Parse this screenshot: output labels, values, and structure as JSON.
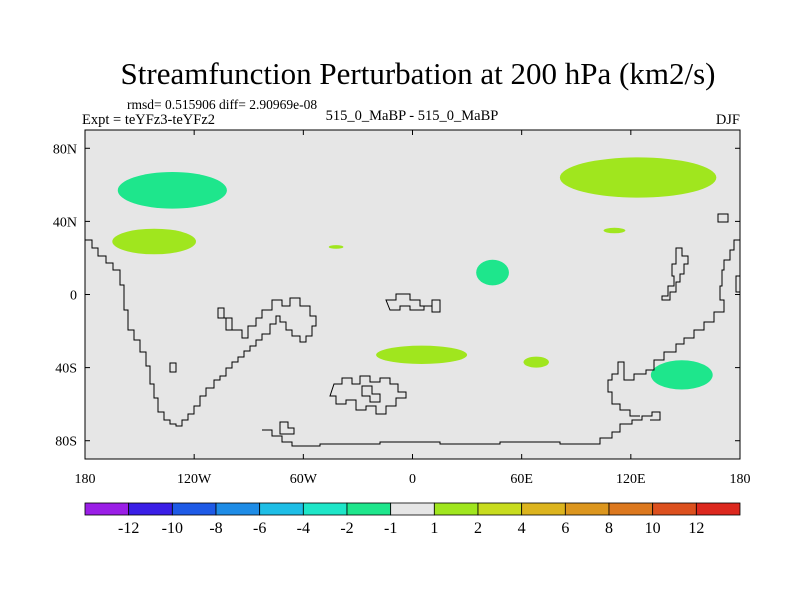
{
  "chart_data": {
    "type": "contour_map",
    "title": "Streamfunction Perturbation at 200 hPa (km2/s)",
    "stats": "rmsd= 0.515906 diff= 2.90969e-08",
    "left_label": "Expt = teYFz3-teYFz2",
    "center_label": "515_0_MaBP - 515_0_MaBP",
    "right_label": "DJF",
    "x_ticks": [
      {
        "lon": -180,
        "label": "180"
      },
      {
        "lon": -120,
        "label": "120W"
      },
      {
        "lon": -60,
        "label": "60W"
      },
      {
        "lon": 0,
        "label": "0"
      },
      {
        "lon": 60,
        "label": "60E"
      },
      {
        "lon": 120,
        "label": "120E"
      },
      {
        "lon": 180,
        "label": "180"
      }
    ],
    "y_ticks": [
      {
        "lat": 80,
        "label": "80N"
      },
      {
        "lat": 40,
        "label": "40N"
      },
      {
        "lat": 0,
        "label": "0"
      },
      {
        "lat": -40,
        "label": "40S"
      },
      {
        "lat": -80,
        "label": "80S"
      }
    ],
    "xlim": [
      -180,
      180
    ],
    "ylim": [
      -90,
      90
    ],
    "colorbar": {
      "colors": [
        "#9a1ee6",
        "#3a1ee6",
        "#1e5ae6",
        "#1e8ce6",
        "#1ebee6",
        "#1ee6c8",
        "#1ee68c",
        "#e6e6e6",
        "#a0e61e",
        "#c8dc1e",
        "#dcb41e",
        "#dc961e",
        "#dc781e",
        "#dc501e",
        "#dc281e"
      ],
      "labels": [
        "-12",
        "-10",
        "-8",
        "-6",
        "-4",
        "-2",
        "-1",
        "1",
        "2",
        "4",
        "6",
        "8",
        "10",
        "12"
      ]
    },
    "regions": [
      {
        "name": "cyan-blob-north-pacific",
        "value_bin": "-2 to -1",
        "color": "#1ee68c",
        "center_lon": -132,
        "center_lat": 57,
        "lon_radius": 30,
        "lat_radius": 10
      },
      {
        "name": "green-blob-pacific-30n",
        "value_bin": "1 to 2",
        "color": "#a0e61e",
        "center_lon": -142,
        "center_lat": 29,
        "lon_radius": 23,
        "lat_radius": 7
      },
      {
        "name": "green-blob-siberia",
        "value_bin": "1 to 2",
        "color": "#a0e61e",
        "center_lon": 124,
        "center_lat": 64,
        "lon_radius": 43,
        "lat_radius": 11
      },
      {
        "name": "green-speck-atlantic",
        "value_bin": "1 to 2",
        "color": "#a0e61e",
        "center_lon": -42,
        "center_lat": 26,
        "lon_radius": 4,
        "lat_radius": 1
      },
      {
        "name": "green-speck-pacific-35n",
        "value_bin": "1 to 2",
        "color": "#a0e61e",
        "center_lon": 111,
        "center_lat": 35,
        "lon_radius": 6,
        "lat_radius": 1.5
      },
      {
        "name": "cyan-blob-arabia",
        "value_bin": "-2 to -1",
        "color": "#1ee68c",
        "center_lon": 44,
        "center_lat": 12,
        "lon_radius": 9,
        "lat_radius": 7
      },
      {
        "name": "green-blob-south-atlantic",
        "value_bin": "1 to 2",
        "color": "#a0e61e",
        "center_lon": 5,
        "center_lat": -33,
        "lon_radius": 25,
        "lat_radius": 5
      },
      {
        "name": "green-blob-indian-ocean",
        "value_bin": "1 to 2",
        "color": "#a0e61e",
        "center_lon": 68,
        "center_lat": -37,
        "lon_radius": 7,
        "lat_radius": 3
      },
      {
        "name": "cyan-blob-south-australia",
        "value_bin": "-2 to -1",
        "color": "#1ee68c",
        "center_lon": 148,
        "center_lat": -44,
        "lon_radius": 17,
        "lat_radius": 8
      }
    ]
  }
}
